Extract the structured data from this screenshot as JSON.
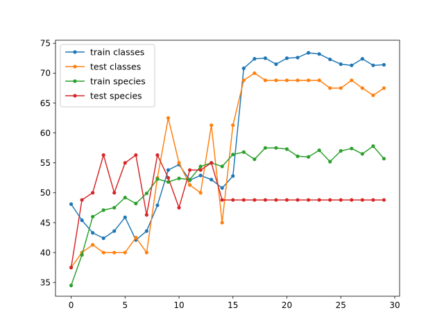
{
  "chart_data": {
    "type": "line",
    "title": "",
    "xlabel": "",
    "ylabel": "",
    "xlim": [
      -1.45,
      30.45
    ],
    "ylim": [
      32.7,
      75.5
    ],
    "xticks": [
      0,
      5,
      10,
      15,
      20,
      25,
      30
    ],
    "yticks": [
      35,
      40,
      45,
      50,
      55,
      60,
      65,
      70,
      75
    ],
    "grid": false,
    "legend_position": "top-left",
    "x": [
      0,
      1,
      2,
      3,
      4,
      5,
      6,
      7,
      8,
      9,
      10,
      11,
      12,
      13,
      14,
      15,
      16,
      17,
      18,
      19,
      20,
      21,
      22,
      23,
      24,
      25,
      26,
      27,
      28,
      29
    ],
    "series": [
      {
        "name": "train classes",
        "color": "#1f77b4",
        "values": [
          48.1,
          45.4,
          43.3,
          42.4,
          43.6,
          45.9,
          42.1,
          43.6,
          47.9,
          53.8,
          54.7,
          52.1,
          52.9,
          52.2,
          50.8,
          52.8,
          70.8,
          72.4,
          72.5,
          71.5,
          72.5,
          72.6,
          73.4,
          73.2,
          72.3,
          71.5,
          71.3,
          72.4,
          71.3,
          71.4
        ]
      },
      {
        "name": "test classes",
        "color": "#ff7f0e",
        "values": [
          37.5,
          40.0,
          41.3,
          40.0,
          40.0,
          40.0,
          42.5,
          40.0,
          52.5,
          62.5,
          55.0,
          51.3,
          50.0,
          61.3,
          45.0,
          61.3,
          68.8,
          70.0,
          68.8,
          68.8,
          68.8,
          68.8,
          68.8,
          68.8,
          67.5,
          67.5,
          68.8,
          67.5,
          66.3,
          67.5
        ]
      },
      {
        "name": "train species",
        "color": "#2ca02c",
        "values": [
          34.5,
          39.6,
          46.0,
          47.1,
          47.5,
          49.2,
          48.2,
          49.9,
          52.3,
          51.8,
          52.4,
          52.2,
          54.4,
          55.0,
          54.4,
          56.4,
          56.8,
          55.6,
          57.5,
          57.5,
          57.3,
          56.1,
          56.0,
          57.1,
          55.2,
          57.0,
          57.4,
          56.5,
          57.8,
          55.7
        ]
      },
      {
        "name": "test species",
        "color": "#d62728",
        "values": [
          37.5,
          48.8,
          50.0,
          56.3,
          50.0,
          55.0,
          56.3,
          46.3,
          56.3,
          52.5,
          47.5,
          53.8,
          53.8,
          55.0,
          48.8,
          48.8,
          48.8,
          48.8,
          48.8,
          48.8,
          48.8,
          48.8,
          48.8,
          48.8,
          48.8,
          48.8,
          48.8,
          48.8,
          48.8,
          48.8
        ]
      }
    ]
  }
}
